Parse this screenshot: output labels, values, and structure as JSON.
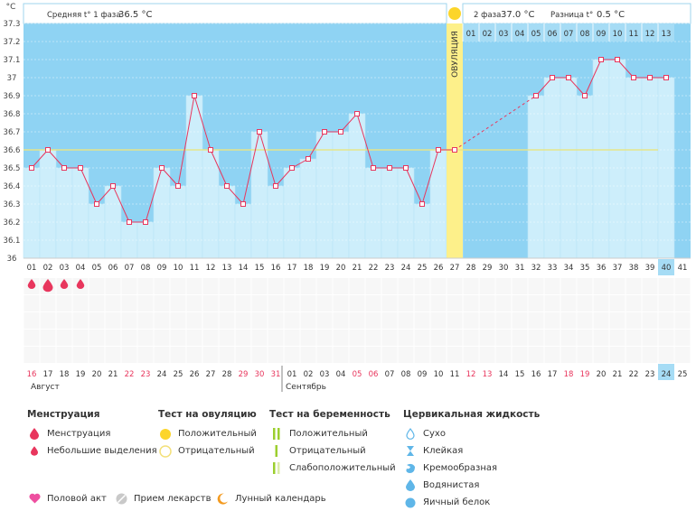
{
  "chart_data": {
    "type": "line",
    "yunit": "°C",
    "ylim": [
      36,
      37.3
    ],
    "yticks": [
      "36",
      "36.1",
      "36.2",
      "36.3",
      "36.4",
      "36.5",
      "36.6",
      "36.7",
      "36.8",
      "36.9",
      "37",
      "37.1",
      "37.2",
      "37.3"
    ],
    "days": [
      "01",
      "02",
      "03",
      "04",
      "05",
      "06",
      "07",
      "08",
      "09",
      "10",
      "11",
      "12",
      "13",
      "14",
      "15",
      "16",
      "17",
      "18",
      "19",
      "20",
      "21",
      "22",
      "23",
      "24",
      "25",
      "26",
      "27",
      "28",
      "29",
      "30",
      "31",
      "32",
      "33",
      "34",
      "35",
      "36",
      "37",
      "38",
      "39",
      "40",
      "41"
    ],
    "dates": [
      "16",
      "17",
      "18",
      "19",
      "20",
      "21",
      "22",
      "23",
      "24",
      "25",
      "26",
      "27",
      "28",
      "29",
      "30",
      "31",
      "01",
      "02",
      "03",
      "04",
      "05",
      "06",
      "07",
      "08",
      "09",
      "10",
      "11",
      "12",
      "13",
      "14",
      "15",
      "16",
      "17",
      "18",
      "19",
      "20",
      "21",
      "22",
      "23",
      "24",
      "25"
    ],
    "weekend_date_indices": [
      0,
      6,
      7,
      13,
      14,
      15,
      20,
      21,
      27,
      28,
      33,
      34
    ],
    "temperatures": [
      36.5,
      36.6,
      36.5,
      36.5,
      36.3,
      36.4,
      36.2,
      36.2,
      36.5,
      36.4,
      36.9,
      36.6,
      36.4,
      36.3,
      36.7,
      36.4,
      36.5,
      36.55,
      36.7,
      36.7,
      36.8,
      36.5,
      36.5,
      36.5,
      36.3,
      36.6,
      36.6,
      null,
      null,
      null,
      null,
      36.9,
      37.0,
      37.0,
      36.9,
      37.1,
      37.1,
      37.0,
      37.0,
      37.0,
      null
    ],
    "coverline": 36.6,
    "ovulation_day": 27,
    "current_day": 40,
    "phase2_day_labels": [
      "01",
      "02",
      "03",
      "04",
      "05",
      "06",
      "07",
      "08",
      "09",
      "10",
      "11",
      "12",
      "13"
    ],
    "phase1_avg_label": "Средняя t° 1 фаза",
    "phase1_avg_value": "36.5 °С",
    "phase2_label": "2 фаза",
    "phase2_value": "37.0 °С",
    "diff_label": "Разница t°",
    "diff_value": "0.5 °С",
    "ovulation_text": "ОВУЛЯЦИЯ",
    "month1": "Август",
    "month2": "Сентябрь",
    "menstruation_days": [
      1,
      2,
      3,
      4
    ],
    "colors": {
      "phase_bg": "#8fd3f3",
      "bar_fill": "#cdeefb",
      "line": "#e8365d",
      "coverline": "#e6e58a",
      "ovulation": "#fdf08a",
      "ovulation_dot": "#fcd52a",
      "drop": "#e8365d",
      "weekend": "#e8365d"
    }
  },
  "legend": {
    "menstruation": {
      "title": "Менструация",
      "items": [
        "Менструация",
        "Небольшие выделения"
      ]
    },
    "ovulation_test": {
      "title": "Тест на овуляцию",
      "items": [
        "Положительный",
        "Отрицательный"
      ]
    },
    "pregnancy_test": {
      "title": "Тест на беременность",
      "items": [
        "Положительный",
        "Отрицательный",
        "Слабоположительный"
      ]
    },
    "cervical": {
      "title": "Цервикальная жидкость",
      "items": [
        "Сухо",
        "Клейкая",
        "Кремообразная",
        "Водянистая",
        "Яичный белок"
      ]
    },
    "bottom": [
      "Половой акт",
      "Прием лекарств",
      "Лунный календарь"
    ]
  }
}
